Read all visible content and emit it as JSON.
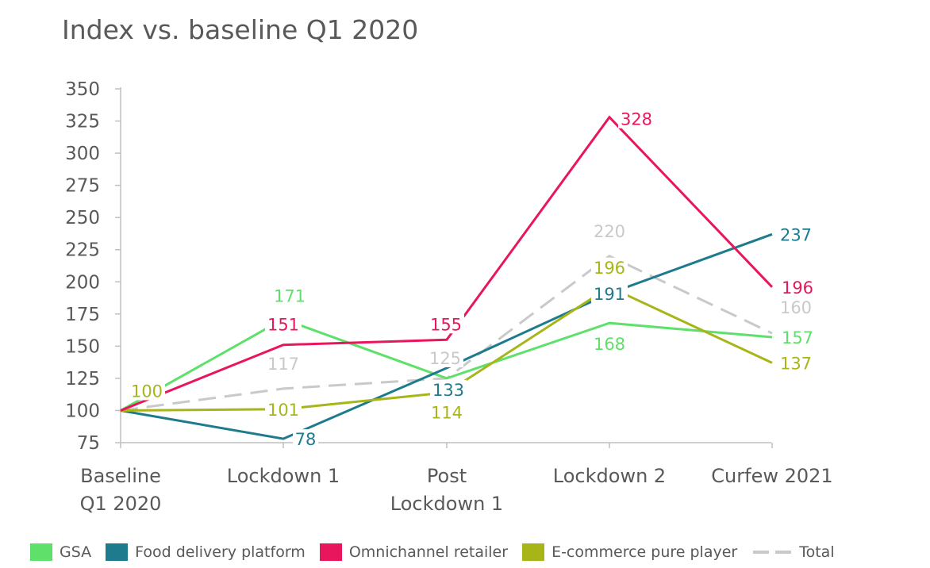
{
  "title": "Index vs. baseline Q1 2020",
  "chart_data": {
    "type": "line",
    "title": "Index vs. baseline Q1 2020",
    "categories": [
      [
        "Baseline",
        "Q1 2020"
      ],
      [
        "Lockdown 1"
      ],
      [
        "Post",
        "Lockdown 1"
      ],
      [
        "Lockdown 2"
      ],
      [
        "Curfew 2021"
      ]
    ],
    "ylim": [
      75,
      350
    ],
    "yticks": [
      75,
      100,
      125,
      150,
      175,
      200,
      225,
      250,
      275,
      300,
      325,
      350
    ],
    "grid": false,
    "legend_position": "bottom",
    "series": [
      {
        "name": "GSA",
        "color": "#5ee06a",
        "style": "solid",
        "values": [
          100,
          171,
          125,
          168,
          157
        ],
        "labels": [
          null,
          "171",
          null,
          "168",
          "157"
        ]
      },
      {
        "name": "Food delivery platform",
        "color": "#1e7b8e",
        "style": "solid",
        "values": [
          100,
          78,
          133,
          191,
          237
        ],
        "labels": [
          null,
          "78",
          "133",
          "191",
          "237"
        ]
      },
      {
        "name": "Omnichannel retailer",
        "color": "#e8175d",
        "style": "solid",
        "values": [
          100,
          151,
          155,
          328,
          196
        ],
        "labels": [
          null,
          "151",
          "155",
          "328",
          "196"
        ]
      },
      {
        "name": "E-commerce pure player",
        "color": "#a8b519",
        "style": "solid",
        "values": [
          100,
          101,
          114,
          196,
          137
        ],
        "labels": [
          "100",
          "101",
          "114",
          "196",
          "137"
        ]
      },
      {
        "name": "Total",
        "color": "#c9c9c9",
        "style": "dashed",
        "values": [
          100,
          117,
          125,
          220,
          160
        ],
        "labels": [
          null,
          "117",
          "125",
          "220",
          "160"
        ]
      }
    ]
  }
}
